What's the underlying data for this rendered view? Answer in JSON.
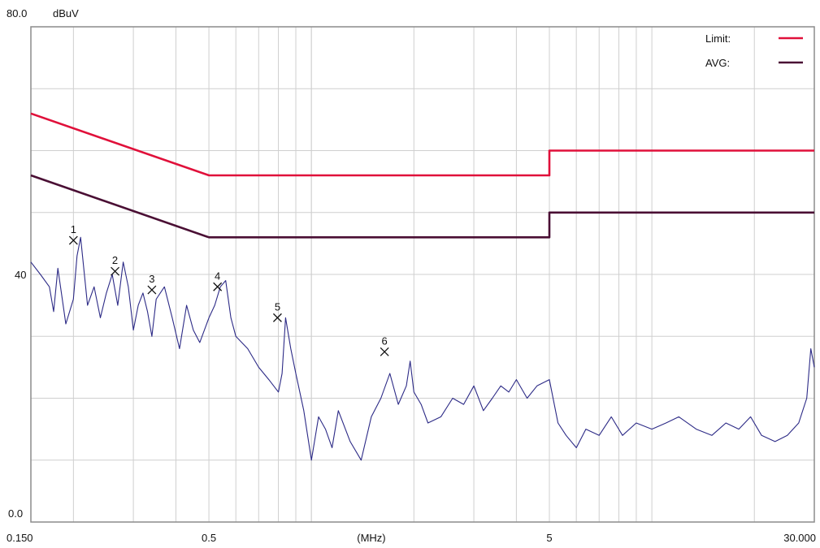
{
  "chart_data": {
    "type": "line",
    "x_scale": "log",
    "x_unit": "(MHz)",
    "y_unit": "dBuV",
    "ylim": [
      0.0,
      80.0
    ],
    "xlim": [
      0.15,
      30.0
    ],
    "y_tick_labels": [
      "80.0",
      "40",
      "0.0"
    ],
    "x_tick_labels": [
      {
        "v": 0.15,
        "label": "0.150"
      },
      {
        "v": 0.5,
        "label": "0.5"
      },
      {
        "v": 1.5,
        "label": "(MHz)"
      },
      {
        "v": 5,
        "label": "5"
      },
      {
        "v": 30,
        "label": "30.000"
      }
    ],
    "grid": true,
    "legend_position": "top-right",
    "colors": {
      "limit": "#e0103a",
      "avg": "#4a0f34",
      "trace": "#2c2a86",
      "grid": "#cfcfcf",
      "frame": "#8c8c8c"
    },
    "series": [
      {
        "name": "Limit:",
        "key": "limit",
        "x": [
          0.15,
          0.5,
          5.0,
          5.0,
          30.0
        ],
        "y": [
          66,
          56,
          56,
          60,
          60
        ]
      },
      {
        "name": "AVG:",
        "key": "avg",
        "x": [
          0.15,
          0.5,
          5.0,
          5.0,
          30.0
        ],
        "y": [
          56,
          46,
          46,
          50,
          50
        ]
      },
      {
        "name": "",
        "key": "trace",
        "x": [
          0.15,
          0.16,
          0.17,
          0.175,
          0.18,
          0.19,
          0.2,
          0.205,
          0.21,
          0.22,
          0.23,
          0.24,
          0.25,
          0.26,
          0.27,
          0.28,
          0.29,
          0.3,
          0.31,
          0.32,
          0.33,
          0.34,
          0.35,
          0.37,
          0.39,
          0.41,
          0.43,
          0.45,
          0.47,
          0.5,
          0.52,
          0.54,
          0.56,
          0.58,
          0.6,
          0.65,
          0.7,
          0.75,
          0.8,
          0.82,
          0.84,
          0.87,
          0.9,
          0.95,
          1.0,
          1.05,
          1.1,
          1.15,
          1.2,
          1.3,
          1.4,
          1.5,
          1.6,
          1.7,
          1.8,
          1.9,
          1.95,
          2.0,
          2.1,
          2.2,
          2.4,
          2.6,
          2.8,
          3.0,
          3.2,
          3.4,
          3.6,
          3.8,
          4.0,
          4.3,
          4.6,
          5.0,
          5.3,
          5.6,
          6.0,
          6.4,
          7.0,
          7.6,
          8.2,
          9.0,
          10.0,
          11.0,
          12.0,
          13.5,
          15.0,
          16.5,
          18.0,
          19.5,
          21.0,
          23.0,
          25.0,
          27.0,
          28.5,
          29.3,
          30.0
        ],
        "y": [
          42,
          40,
          38,
          34,
          41,
          32,
          36,
          43,
          46,
          35,
          38,
          33,
          37,
          40,
          35,
          42,
          38,
          31,
          35,
          37,
          34,
          30,
          36,
          38,
          33,
          28,
          35,
          31,
          29,
          33,
          35,
          38,
          39,
          33,
          30,
          28,
          25,
          23,
          21,
          24,
          33,
          28,
          24,
          18,
          10,
          17,
          15,
          12,
          18,
          13,
          10,
          17,
          20,
          24,
          19,
          22,
          26,
          21,
          19,
          16,
          17,
          20,
          19,
          22,
          18,
          20,
          22,
          21,
          23,
          20,
          22,
          23,
          16,
          14,
          12,
          15,
          14,
          17,
          14,
          16,
          15,
          16,
          17,
          15,
          14,
          16,
          15,
          17,
          14,
          13,
          14,
          16,
          20,
          28,
          25
        ]
      }
    ],
    "markers": [
      {
        "label": "1",
        "x": 0.2,
        "y": 45.5
      },
      {
        "label": "2",
        "x": 0.265,
        "y": 40.5
      },
      {
        "label": "3",
        "x": 0.34,
        "y": 37.5
      },
      {
        "label": "4",
        "x": 0.53,
        "y": 38.0
      },
      {
        "label": "5",
        "x": 0.795,
        "y": 33.0
      },
      {
        "label": "6",
        "x": 1.64,
        "y": 27.5
      }
    ]
  }
}
